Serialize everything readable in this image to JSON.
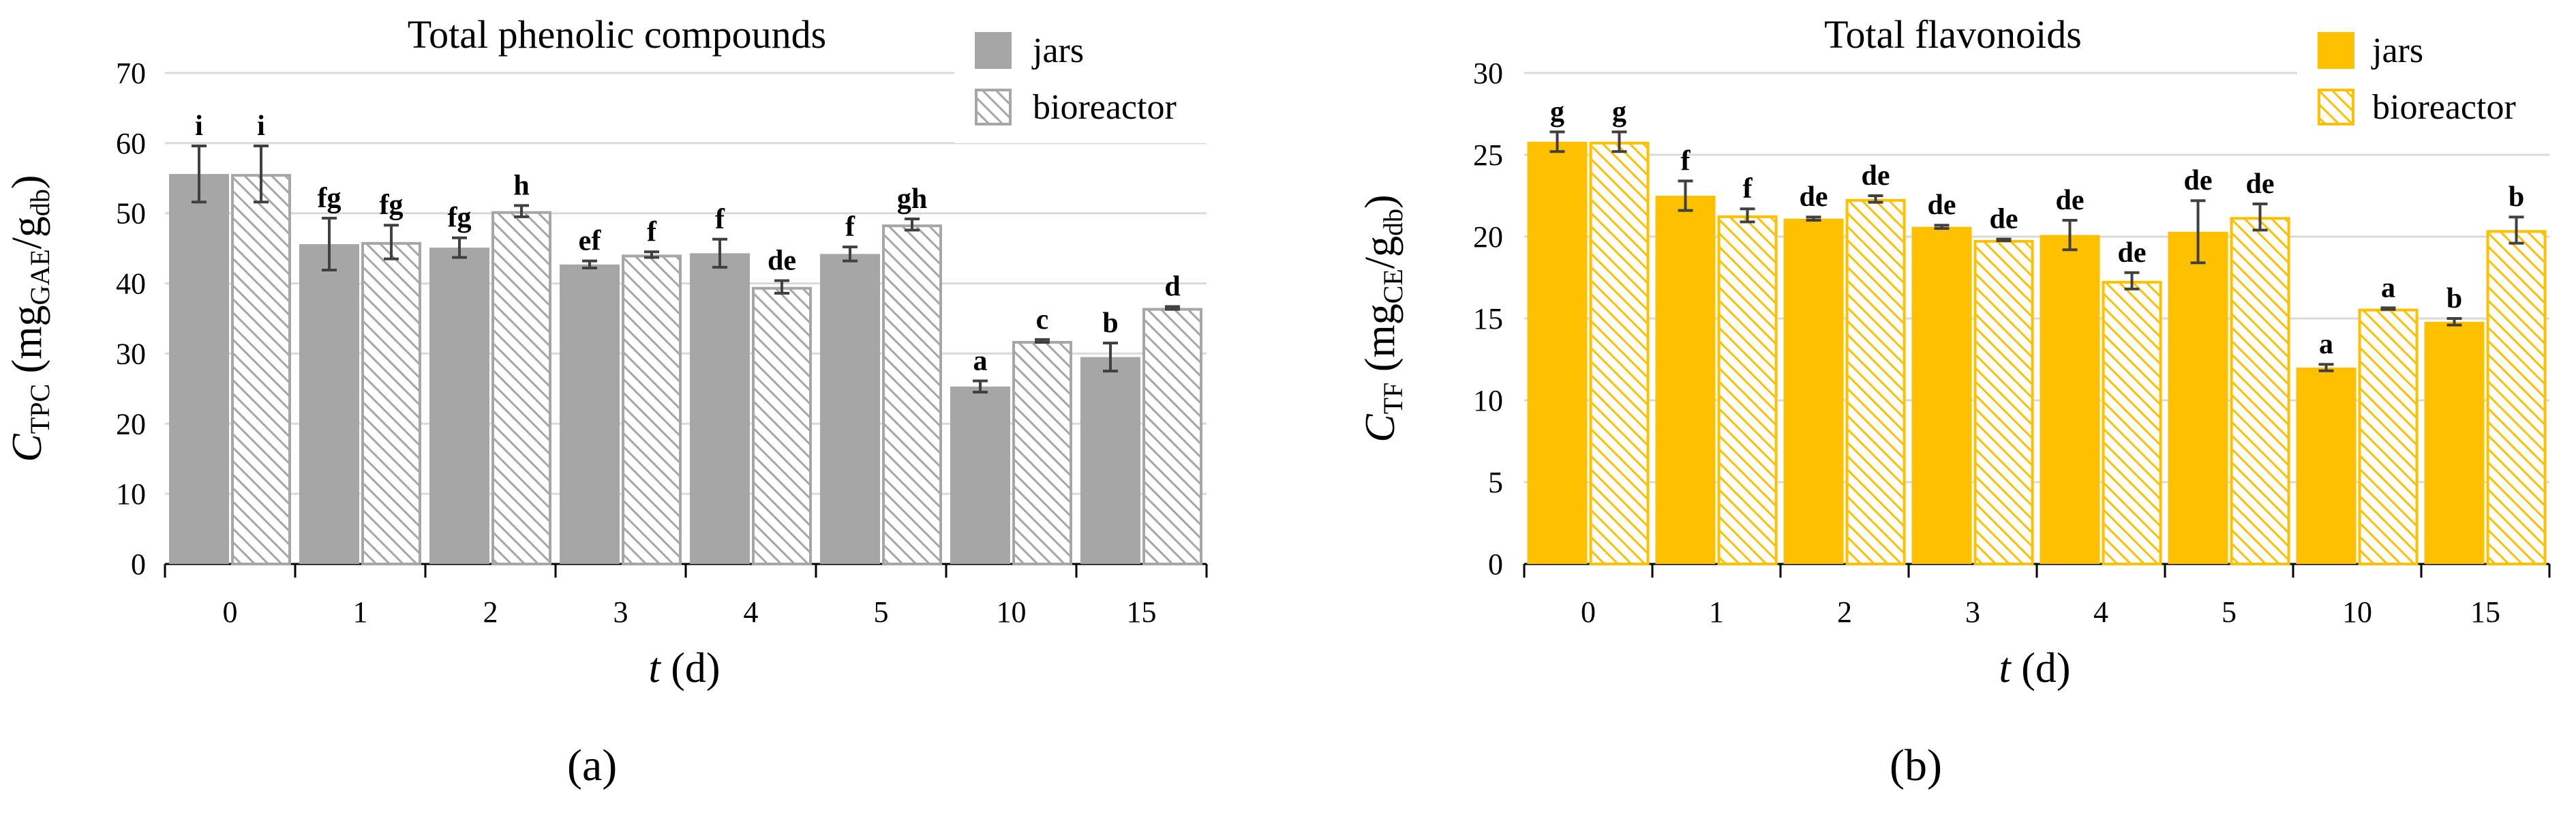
{
  "figure": {
    "labels": [
      "(a)",
      "(b)"
    ]
  },
  "chart_data": [
    {
      "type": "bar",
      "title": "Total phenolic compounds",
      "xlabel": "t (d)",
      "ylabel": "C_TPC (mg_GAE/g_db)",
      "ylabel_parts": {
        "sym": "C",
        "sym_sub": "TPC",
        "open": "(mg",
        "unit_sub1": "GAE",
        "slash": "/g",
        "unit_sub2": "db",
        "close": ")"
      },
      "xlabel_parts": {
        "var": "t",
        "unit": "(d)"
      },
      "ylim": [
        0,
        70
      ],
      "yticks": [
        0,
        10,
        20,
        30,
        40,
        50,
        60,
        70
      ],
      "grid": true,
      "legend_position": "top-right",
      "categories": [
        "0",
        "1",
        "2",
        "3",
        "4",
        "5",
        "10",
        "15"
      ],
      "colors": {
        "jars": "#a6a6a6",
        "bioreactor_stroke": "#a6a6a6",
        "hatch": "#a6a6a6"
      },
      "series": [
        {
          "name": "jars",
          "values": [
            55.6,
            45.6,
            45.1,
            42.7,
            44.3,
            44.2,
            25.3,
            29.5
          ],
          "errors": [
            4.0,
            3.7,
            1.4,
            0.5,
            2.0,
            1.0,
            0.8,
            2.0
          ],
          "letters": [
            "i",
            "fg",
            "fg",
            "ef",
            "f",
            "f",
            "a",
            "b"
          ]
        },
        {
          "name": "bioreactor",
          "values": [
            55.6,
            45.9,
            50.3,
            44.1,
            39.5,
            48.4,
            31.8,
            36.5
          ],
          "errors": [
            4.0,
            2.4,
            0.8,
            0.4,
            0.9,
            0.8,
            0.2,
            0.2
          ],
          "letters": [
            "i",
            "fg",
            "h",
            "f",
            "de",
            "gh",
            "c",
            "d"
          ]
        }
      ]
    },
    {
      "type": "bar",
      "title": "Total flavonoids",
      "xlabel": "t (d)",
      "ylabel": "C_TF (mg_CE/g_db)",
      "ylabel_parts": {
        "sym": "C",
        "sym_sub": "TF",
        "open": "(mg",
        "unit_sub1": "CE",
        "slash": "/g",
        "unit_sub2": "db",
        "close": ")"
      },
      "xlabel_parts": {
        "var": "t",
        "unit": "(d)"
      },
      "ylim": [
        0,
        30
      ],
      "yticks": [
        0,
        5,
        10,
        15,
        20,
        25,
        30
      ],
      "grid": true,
      "legend_position": "top-right",
      "categories": [
        "0",
        "1",
        "2",
        "3",
        "4",
        "5",
        "10",
        "15"
      ],
      "colors": {
        "jars": "#ffc000",
        "bioreactor_stroke": "#ffc000",
        "hatch": "#ffc000"
      },
      "series": [
        {
          "name": "jars",
          "values": [
            25.8,
            22.5,
            21.1,
            20.6,
            20.1,
            20.3,
            12.0,
            14.8
          ],
          "errors": [
            0.6,
            0.9,
            0.1,
            0.1,
            0.9,
            1.9,
            0.2,
            0.2
          ],
          "letters": [
            "g",
            "f",
            "de",
            "de",
            "de",
            "de",
            "a",
            "b"
          ]
        },
        {
          "name": "bioreactor",
          "values": [
            25.8,
            21.3,
            22.3,
            19.8,
            17.3,
            21.2,
            15.6,
            20.4
          ],
          "errors": [
            0.6,
            0.4,
            0.2,
            0.05,
            0.5,
            0.8,
            0.05,
            0.8
          ],
          "letters": [
            "g",
            "f",
            "de",
            "de",
            "de",
            "de",
            "a",
            "b"
          ]
        }
      ]
    }
  ]
}
